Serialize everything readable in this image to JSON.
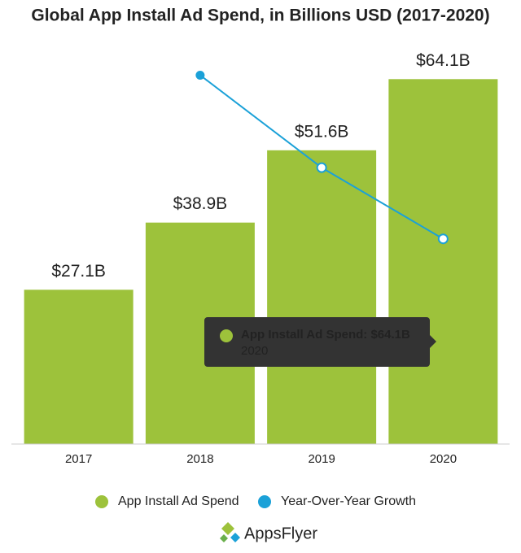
{
  "chart_data": {
    "type": "bar_line",
    "title": "Global App Install Ad Spend, in Billions USD (2017-2020)",
    "categories": [
      "2017",
      "2018",
      "2019",
      "2020"
    ],
    "series": [
      {
        "name": "App Install Ad Spend",
        "color": "#9dc23b",
        "type": "bar",
        "values": [
          27.1,
          38.9,
          51.6,
          64.1
        ],
        "value_labels": [
          "$27.1B",
          "$38.9B",
          "$51.6B",
          "$64.1B"
        ]
      },
      {
        "name": "Year-Over-Year Growth",
        "color": "#1ba1d8",
        "type": "line",
        "axis": "y2",
        "values": [
          null,
          43.5,
          32.6,
          24.2
        ]
      }
    ],
    "ylim": [
      0,
      70
    ],
    "y2lim": [
      0,
      47
    ],
    "legend": "bottom",
    "tooltip": {
      "label": "App Install Ad Spend: $64.1B",
      "category": "2020"
    },
    "brand": "AppsFlyer"
  }
}
